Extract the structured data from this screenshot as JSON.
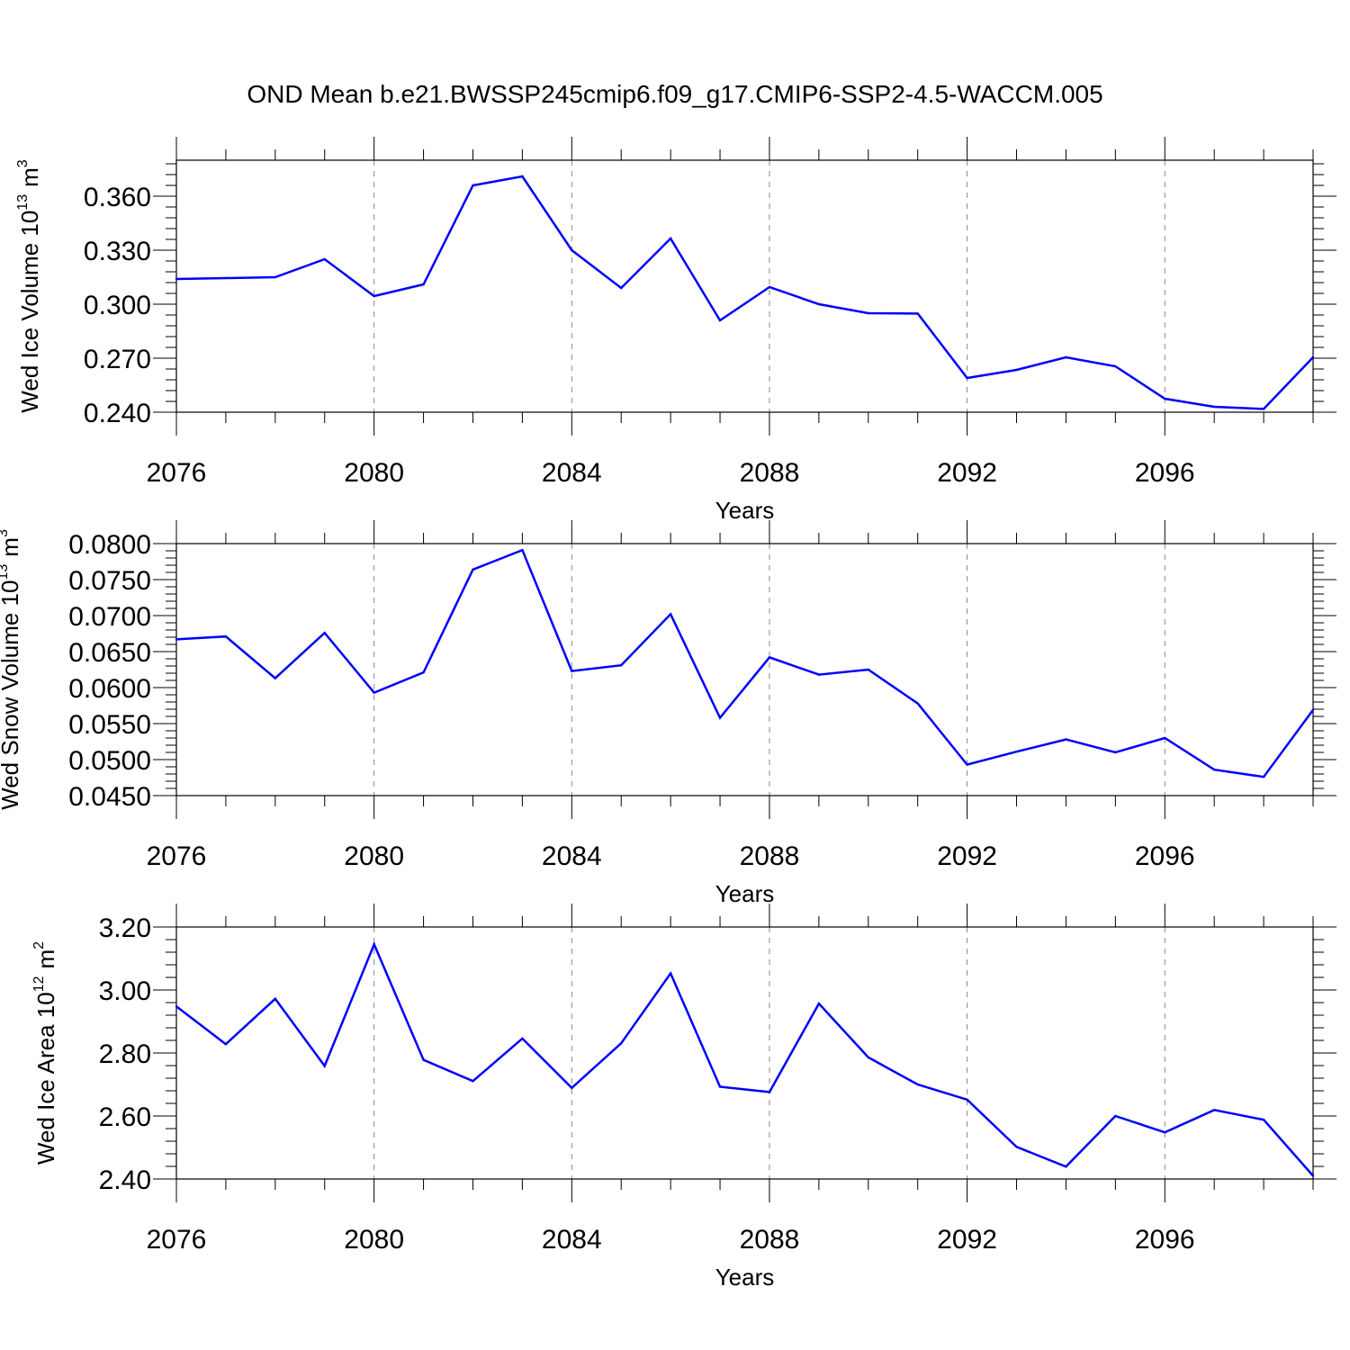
{
  "title": "OND Mean b.e21.BWSSP245cmip6.f09_g17.CMIP6-SSP2-4.5-WACCM.005",
  "line_color": "#0000ff",
  "chart_data": [
    {
      "type": "line",
      "ylabel": {
        "main": "Wed Ice Volume 10",
        "sup": "13",
        "unit": "m",
        "unit_sup": "3"
      },
      "xlabel": "Years",
      "xlim": [
        2076,
        2099
      ],
      "ylim": [
        0.24,
        0.38
      ],
      "xticks": [
        "2076",
        "2080",
        "2084",
        "2088",
        "2092",
        "2096"
      ],
      "yticks": [
        "0.240",
        "0.270",
        "0.300",
        "0.330",
        "0.360"
      ],
      "x": [
        2076,
        2077,
        2078,
        2079,
        2080,
        2081,
        2082,
        2083,
        2084,
        2085,
        2086,
        2087,
        2088,
        2089,
        2090,
        2091,
        2092,
        2093,
        2094,
        2095,
        2096,
        2097,
        2098,
        2099
      ],
      "values": [
        0.314,
        0.3145,
        0.315,
        0.325,
        0.3045,
        0.311,
        0.366,
        0.371,
        0.33,
        0.309,
        0.3365,
        0.291,
        0.3095,
        0.3,
        0.295,
        0.2948,
        0.259,
        0.2635,
        0.2705,
        0.2655,
        0.2475,
        0.243,
        0.2418,
        0.2705
      ]
    },
    {
      "type": "line",
      "ylabel": {
        "main": "Wed Snow Volume 10",
        "sup": "13",
        "unit": "m",
        "unit_sup": "3"
      },
      "xlabel": "Years",
      "xlim": [
        2076,
        2099
      ],
      "ylim": [
        0.045,
        0.08
      ],
      "xticks": [
        "2076",
        "2080",
        "2084",
        "2088",
        "2092",
        "2096"
      ],
      "yticks": [
        "0.0450",
        "0.0500",
        "0.0550",
        "0.0600",
        "0.0650",
        "0.0700",
        "0.0750",
        "0.0800"
      ],
      "x": [
        2076,
        2077,
        2078,
        2079,
        2080,
        2081,
        2082,
        2083,
        2084,
        2085,
        2086,
        2087,
        2088,
        2089,
        2090,
        2091,
        2092,
        2093,
        2094,
        2095,
        2096,
        2097,
        2098,
        2099
      ],
      "values": [
        0.0667,
        0.0671,
        0.0613,
        0.0676,
        0.0593,
        0.0621,
        0.0764,
        0.0791,
        0.0623,
        0.0631,
        0.0702,
        0.0558,
        0.0642,
        0.0618,
        0.0625,
        0.0578,
        0.0493,
        0.0511,
        0.0528,
        0.051,
        0.053,
        0.0486,
        0.0476,
        0.0569
      ]
    },
    {
      "type": "line",
      "ylabel": {
        "main": "Wed Ice Area 10",
        "sup": "12",
        "unit": "m",
        "unit_sup": "2"
      },
      "xlabel": "Years",
      "xlim": [
        2076,
        2099
      ],
      "ylim": [
        2.4,
        3.2
      ],
      "xticks": [
        "2076",
        "2080",
        "2084",
        "2088",
        "2092",
        "2096"
      ],
      "yticks": [
        "2.40",
        "2.60",
        "2.80",
        "3.00",
        "3.20"
      ],
      "x": [
        2076,
        2077,
        2078,
        2079,
        2080,
        2081,
        2082,
        2083,
        2084,
        2085,
        2086,
        2087,
        2088,
        2089,
        2090,
        2091,
        2092,
        2093,
        2094,
        2095,
        2096,
        2097,
        2098,
        2099
      ],
      "values": [
        2.948,
        2.828,
        2.972,
        2.759,
        3.145,
        2.778,
        2.711,
        2.846,
        2.689,
        2.831,
        3.053,
        2.693,
        2.676,
        2.957,
        2.786,
        2.7,
        2.652,
        2.502,
        2.439,
        2.6,
        2.548,
        2.619,
        2.588,
        2.41
      ]
    }
  ]
}
